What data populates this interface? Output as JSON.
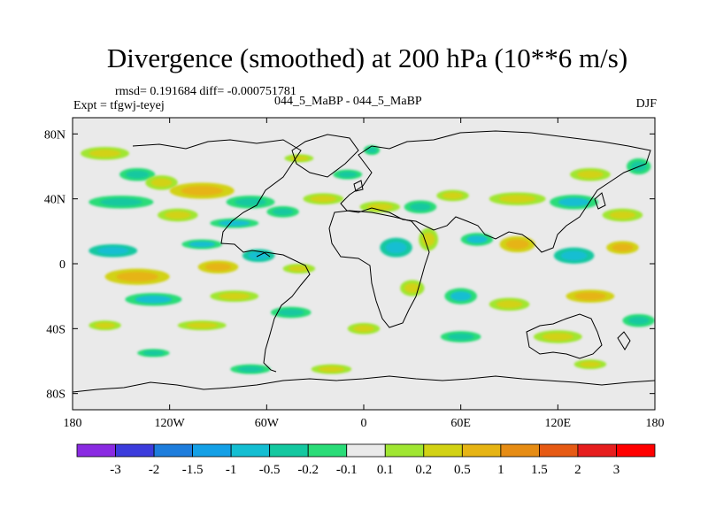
{
  "chart_data": {
    "type": "heatmap",
    "title": "Divergence (smoothed) at 200 hPa (10**6 m/s)",
    "stats": "rmsd= 0.191684 diff= -0.000751781",
    "cases": "044_5_MaBP - 044_5_MaBP",
    "experiment": "Expt = tfgwj-teyej",
    "season": "DJF",
    "x_range": [
      -180,
      180
    ],
    "y_range": [
      -90,
      90
    ],
    "x_ticks": [
      {
        "value": -180,
        "label": "180"
      },
      {
        "value": -120,
        "label": "120W"
      },
      {
        "value": -60,
        "label": "60W"
      },
      {
        "value": 0,
        "label": "0"
      },
      {
        "value": 60,
        "label": "60E"
      },
      {
        "value": 120,
        "label": "120E"
      },
      {
        "value": 180,
        "label": "180"
      }
    ],
    "y_ticks": [
      {
        "value": 80,
        "label": "80N"
      },
      {
        "value": 40,
        "label": "40N"
      },
      {
        "value": 0,
        "label": "0"
      },
      {
        "value": -40,
        "label": "40S"
      },
      {
        "value": -80,
        "label": "80S"
      }
    ],
    "colorbar": {
      "levels": [
        "-3",
        "-2",
        "-1.5",
        "-1",
        "-0.5",
        "-0.2",
        "-0.1",
        "0.1",
        "0.2",
        "0.5",
        "1",
        "1.5",
        "2",
        "3"
      ],
      "colors": [
        "#8a2be2",
        "#3c3cdc",
        "#1e7ddc",
        "#14a0e6",
        "#14bed2",
        "#14c8a0",
        "#2adc78",
        "#eaeaea",
        "#a0e632",
        "#d2d214",
        "#e6b414",
        "#e68c14",
        "#e65a14",
        "#e61e1e",
        "#ff0000"
      ]
    },
    "features": [
      {
        "lon": -160,
        "lat": 68,
        "w": 30,
        "h": 8,
        "val": 0.3
      },
      {
        "lon": -140,
        "lat": 55,
        "w": 22,
        "h": 8,
        "val": -0.3
      },
      {
        "lon": -125,
        "lat": 50,
        "w": 20,
        "h": 9,
        "val": 0.4
      },
      {
        "lon": -100,
        "lat": 45,
        "w": 40,
        "h": 10,
        "val": 0.6
      },
      {
        "lon": -70,
        "lat": 38,
        "w": 30,
        "h": 8,
        "val": -0.4
      },
      {
        "lon": -150,
        "lat": 38,
        "w": 40,
        "h": 8,
        "val": -0.4
      },
      {
        "lon": -115,
        "lat": 30,
        "w": 25,
        "h": 8,
        "val": 0.5
      },
      {
        "lon": -80,
        "lat": 25,
        "w": 30,
        "h": 6,
        "val": -0.5
      },
      {
        "lon": -50,
        "lat": 32,
        "w": 20,
        "h": 7,
        "val": -0.3
      },
      {
        "lon": -25,
        "lat": 40,
        "w": 25,
        "h": 7,
        "val": 0.3
      },
      {
        "lon": -10,
        "lat": 55,
        "w": 18,
        "h": 6,
        "val": -0.3
      },
      {
        "lon": -40,
        "lat": 65,
        "w": 18,
        "h": 5,
        "val": 0.3
      },
      {
        "lon": 5,
        "lat": 70,
        "w": 10,
        "h": 6,
        "val": -0.3
      },
      {
        "lon": 10,
        "lat": 35,
        "w": 25,
        "h": 7,
        "val": 0.5
      },
      {
        "lon": 35,
        "lat": 35,
        "w": 20,
        "h": 8,
        "val": -0.4
      },
      {
        "lon": 55,
        "lat": 42,
        "w": 20,
        "h": 7,
        "val": 0.4
      },
      {
        "lon": 95,
        "lat": 40,
        "w": 35,
        "h": 8,
        "val": 0.5
      },
      {
        "lon": 130,
        "lat": 38,
        "w": 30,
        "h": 9,
        "val": -0.5
      },
      {
        "lon": 160,
        "lat": 30,
        "w": 25,
        "h": 8,
        "val": 0.4
      },
      {
        "lon": 140,
        "lat": 55,
        "w": 25,
        "h": 8,
        "val": 0.3
      },
      {
        "lon": 170,
        "lat": 60,
        "w": 15,
        "h": 10,
        "val": -0.3
      },
      {
        "lon": -155,
        "lat": 8,
        "w": 30,
        "h": 8,
        "val": -0.6
      },
      {
        "lon": -140,
        "lat": -8,
        "w": 40,
        "h": 10,
        "val": 0.9
      },
      {
        "lon": -90,
        "lat": -2,
        "w": 25,
        "h": 8,
        "val": 0.8
      },
      {
        "lon": -65,
        "lat": 5,
        "w": 20,
        "h": 8,
        "val": -0.6
      },
      {
        "lon": -40,
        "lat": -3,
        "w": 20,
        "h": 6,
        "val": 0.5
      },
      {
        "lon": -100,
        "lat": 12,
        "w": 25,
        "h": 6,
        "val": -0.5
      },
      {
        "lon": -130,
        "lat": -22,
        "w": 35,
        "h": 8,
        "val": -0.5
      },
      {
        "lon": -80,
        "lat": -20,
        "w": 30,
        "h": 7,
        "val": 0.4
      },
      {
        "lon": -100,
        "lat": -38,
        "w": 30,
        "h": 6,
        "val": 0.4
      },
      {
        "lon": -160,
        "lat": -38,
        "w": 20,
        "h": 6,
        "val": 0.5
      },
      {
        "lon": -45,
        "lat": -30,
        "w": 25,
        "h": 7,
        "val": -0.4
      },
      {
        "lon": 20,
        "lat": 10,
        "w": 20,
        "h": 12,
        "val": -0.6
      },
      {
        "lon": 40,
        "lat": 15,
        "w": 12,
        "h": 14,
        "val": 0.5
      },
      {
        "lon": 70,
        "lat": 15,
        "w": 20,
        "h": 8,
        "val": -0.5
      },
      {
        "lon": 95,
        "lat": 12,
        "w": 22,
        "h": 10,
        "val": 0.6
      },
      {
        "lon": 130,
        "lat": 5,
        "w": 25,
        "h": 10,
        "val": -0.7
      },
      {
        "lon": 160,
        "lat": 10,
        "w": 20,
        "h": 8,
        "val": 0.6
      },
      {
        "lon": 30,
        "lat": -15,
        "w": 15,
        "h": 10,
        "val": 0.5
      },
      {
        "lon": 60,
        "lat": -20,
        "w": 20,
        "h": 10,
        "val": -0.5
      },
      {
        "lon": 90,
        "lat": -25,
        "w": 25,
        "h": 8,
        "val": 0.5
      },
      {
        "lon": 140,
        "lat": -20,
        "w": 30,
        "h": 8,
        "val": 0.6
      },
      {
        "lon": 170,
        "lat": -35,
        "w": 20,
        "h": 8,
        "val": -0.4
      },
      {
        "lon": 120,
        "lat": -45,
        "w": 30,
        "h": 8,
        "val": 0.4
      },
      {
        "lon": 60,
        "lat": -45,
        "w": 25,
        "h": 7,
        "val": -0.4
      },
      {
        "lon": 0,
        "lat": -40,
        "w": 20,
        "h": 7,
        "val": 0.4
      },
      {
        "lon": -130,
        "lat": -55,
        "w": 20,
        "h": 5,
        "val": -0.3
      },
      {
        "lon": -70,
        "lat": -65,
        "w": 25,
        "h": 6,
        "val": -0.3
      },
      {
        "lon": -20,
        "lat": -65,
        "w": 25,
        "h": 6,
        "val": 0.3
      },
      {
        "lon": 140,
        "lat": -62,
        "w": 20,
        "h": 6,
        "val": 0.3
      }
    ]
  }
}
